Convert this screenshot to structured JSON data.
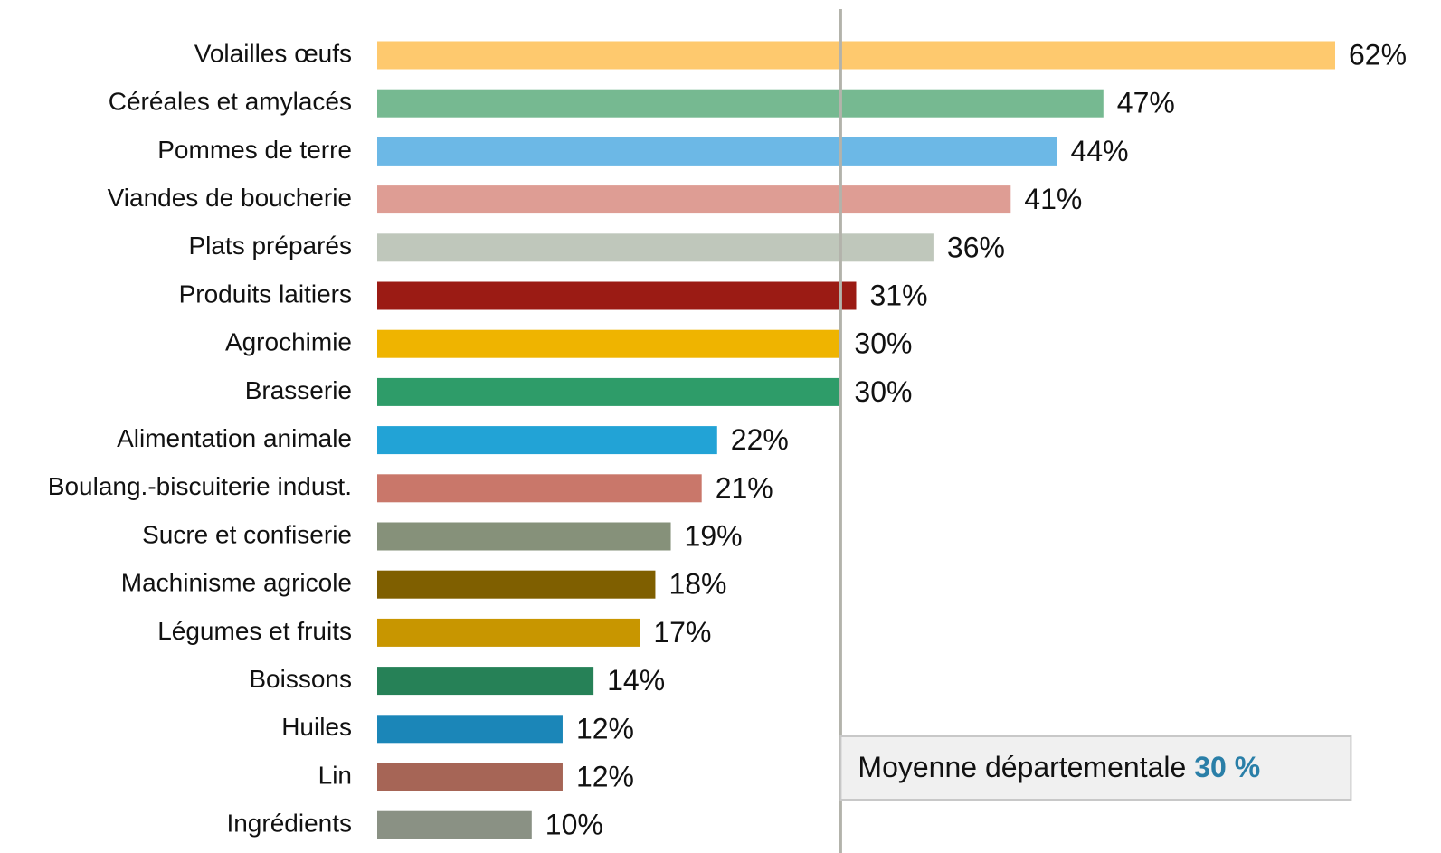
{
  "chart_data": {
    "type": "barh",
    "categories": [
      "Volailles œufs",
      "Céréales et amylacés",
      "Pommes de terre",
      "Viandes de boucherie",
      "Plats préparés",
      "Produits laitiers",
      "Agrochimie",
      "Brasserie",
      "Alimentation animale",
      "Boulang.-biscuiterie indust.",
      "Sucre et confiserie",
      "Machinisme agricole",
      "Légumes et fruits",
      "Boissons",
      "Huiles",
      "Lin",
      "Ingrédients"
    ],
    "values": [
      62,
      47,
      44,
      41,
      36,
      31,
      30,
      30,
      22,
      21,
      19,
      18,
      17,
      14,
      12,
      12,
      10
    ],
    "value_labels": [
      "62%",
      "47%",
      "44%",
      "41%",
      "36%",
      "31%",
      "30%",
      "30%",
      "22%",
      "21%",
      "19%",
      "18%",
      "17%",
      "14%",
      "12%",
      "12%",
      "10%"
    ],
    "colors": [
      "#fec96e",
      "#76b991",
      "#6cb8e6",
      "#de9d94",
      "#bfc7bb",
      "#9b1b14",
      "#efb400",
      "#2e9c69",
      "#22a3d6",
      "#c9776a",
      "#86917a",
      "#7f5f00",
      "#c89600",
      "#268157",
      "#1b86b8",
      "#a66556",
      "#8a9184"
    ],
    "xlim": [
      0,
      62
    ],
    "reference": {
      "value": 30,
      "label": "30 %",
      "text": "Moyenne départementale",
      "color": "#2a7fa8"
    }
  }
}
